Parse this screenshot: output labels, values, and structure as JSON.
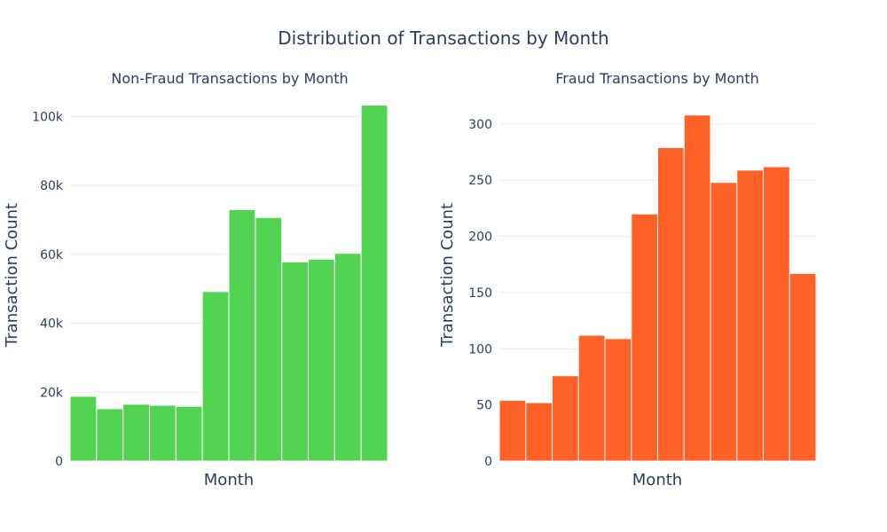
{
  "title": "Distribution of Transactions by Month",
  "chart_data": [
    {
      "type": "bar",
      "title": "Non-Fraud Transactions by Month",
      "xlabel": "Month",
      "ylabel": "Transaction Count",
      "color": "#52d452",
      "ylim": [
        0,
        105000
      ],
      "yticks": [
        0,
        20000,
        40000,
        60000,
        80000,
        100000
      ],
      "ytick_labels": [
        "0",
        "20k",
        "40k",
        "60k",
        "80k",
        "100k"
      ],
      "values": [
        18800,
        15200,
        16500,
        16200,
        15900,
        49200,
        73000,
        70700,
        57800,
        58600,
        60300,
        103300
      ]
    },
    {
      "type": "bar",
      "title": "Fraud Transactions by Month",
      "xlabel": "Month",
      "ylabel": "Transaction Count",
      "color": "#ff6126",
      "ylim": [
        0,
        322
      ],
      "yticks": [
        0,
        50,
        100,
        150,
        200,
        250,
        300
      ],
      "ytick_labels": [
        "0",
        "50",
        "100",
        "150",
        "200",
        "250",
        "300"
      ],
      "values": [
        54,
        52,
        76,
        112,
        109,
        220,
        279,
        308,
        248,
        259,
        262,
        167
      ]
    }
  ]
}
